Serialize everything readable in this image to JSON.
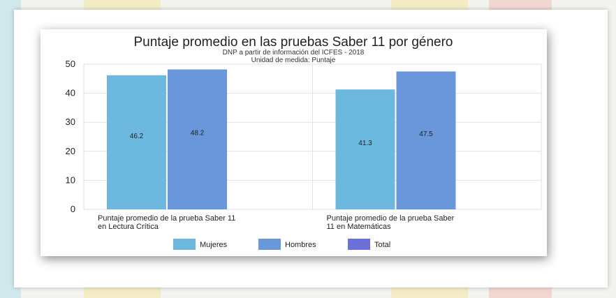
{
  "chart_data": {
    "type": "bar",
    "title": "Puntaje promedio en las pruebas Saber 11 por género",
    "subtitle_lines": [
      "DNP a partir de información del ICFES - 2018",
      "Unidad de medida: Puntaje"
    ],
    "xlabel": "",
    "ylabel": "",
    "ylim": [
      0,
      50
    ],
    "yticks": [
      0,
      10,
      20,
      30,
      40,
      50
    ],
    "grid": true,
    "legend_position": "bottom",
    "categories": [
      [
        "Puntaje promedio de la prueba Saber 11",
        "en Lectura Crítica"
      ],
      [
        "Puntaje promedio de la prueba Saber",
        "11 en Matemáticas"
      ]
    ],
    "series": [
      {
        "name": "Mujeres",
        "color": "#6cb8de",
        "values": [
          46.2,
          41.3
        ]
      },
      {
        "name": "Hombres",
        "color": "#6a96dc",
        "values": [
          48.2,
          47.5
        ]
      },
      {
        "name": "Total",
        "color": "#6b6fd8",
        "values": [
          null,
          null
        ]
      }
    ]
  }
}
